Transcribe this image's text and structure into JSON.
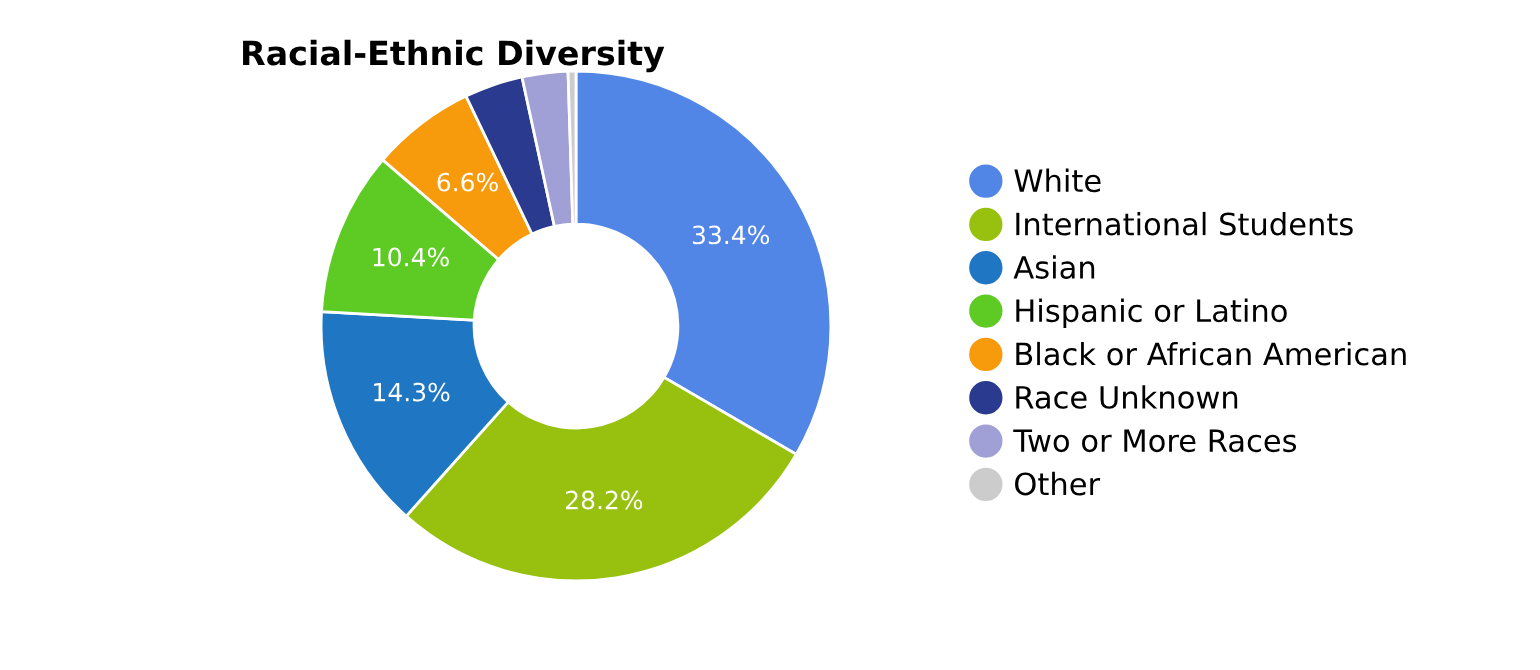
{
  "chart_data": {
    "type": "donut",
    "title": "Racial-Ethnic Diversity",
    "categories": [
      "White",
      "International Students",
      "Asian",
      "Hispanic or Latino",
      "Black or African American",
      "Race Unknown",
      "Two or More Races",
      "Other"
    ],
    "values": [
      33.4,
      28.2,
      14.3,
      10.4,
      6.6,
      3.7,
      2.9,
      0.5
    ],
    "colors": [
      "#5286e6",
      "#97c10e",
      "#1f76c2",
      "#5dcb23",
      "#f79a0b",
      "#2a3b8f",
      "#a09fd6",
      "#cccccc"
    ],
    "value_labels": [
      "33.4%",
      "28.2%",
      "14.3%",
      "10.4%",
      "6.6%",
      null,
      null,
      null
    ],
    "legend": "right"
  }
}
